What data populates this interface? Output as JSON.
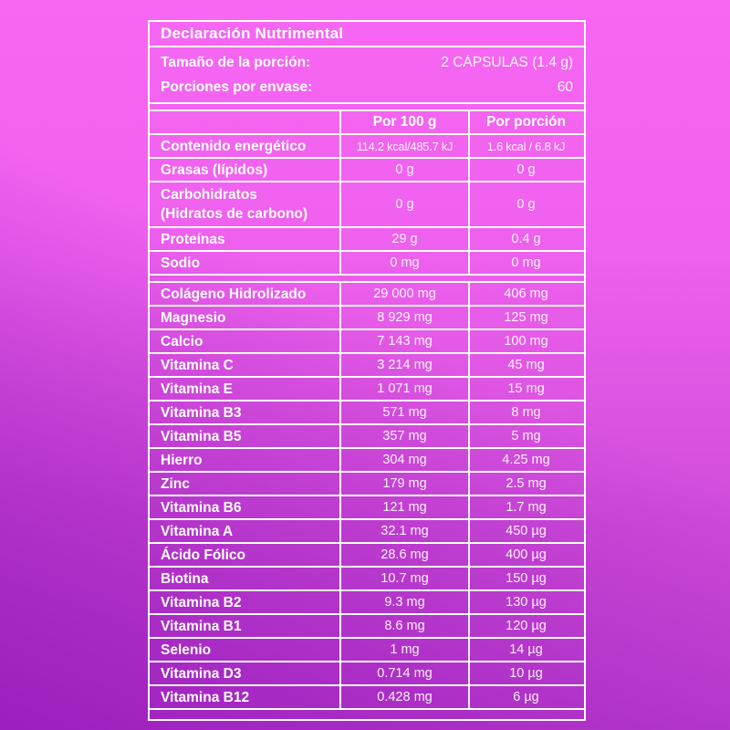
{
  "background": {
    "top_color": "#f767f3",
    "bottom_color": "#c446d3",
    "corner_dark_color": "#9c1fbe",
    "line_color": "#ffffff",
    "text_color": "#ffffff"
  },
  "label": {
    "title": "Declaración Nutrimental",
    "serving_size_label": "Tamaño de la porción:",
    "serving_size_value": "2 CÁPSULAS (1.4 g)",
    "servings_per_container_label": "Porciones por envase:",
    "servings_per_container_value": "60",
    "col_per100_header": "Por 100 g",
    "col_portion_header": "Por porción",
    "macro_rows": [
      {
        "name": "Contenido energético",
        "per100": "114.2 kcal/485.7 kJ",
        "portion": "1.6 kcal / 6.8 kJ"
      },
      {
        "name": "Grasas (lípidos)",
        "per100": "0 g",
        "portion": "0 g"
      },
      {
        "name": "Carbohidratos\n(Hidratos de carbono)",
        "per100": "0 g",
        "portion": "0 g"
      },
      {
        "name": "Proteínas",
        "per100": "29 g",
        "portion": "0.4 g"
      },
      {
        "name": "Sodio",
        "per100": "0 mg",
        "portion": "0 mg"
      }
    ],
    "micro_rows": [
      {
        "name": "Colágeno Hidrolizado",
        "per100": "29 000 mg",
        "portion": "406 mg"
      },
      {
        "name": "Magnesio",
        "per100": "8 929 mg",
        "portion": "125 mg"
      },
      {
        "name": "Calcio",
        "per100": "7 143 mg",
        "portion": "100 mg"
      },
      {
        "name": "Vitamina C",
        "per100": "3 214 mg",
        "portion": "45 mg"
      },
      {
        "name": "Vitamina E",
        "per100": "1 071 mg",
        "portion": "15 mg"
      },
      {
        "name": "Vitamina B3",
        "per100": "571 mg",
        "portion": "8 mg"
      },
      {
        "name": "Vitamina B5",
        "per100": "357 mg",
        "portion": "5 mg"
      },
      {
        "name": "Hierro",
        "per100": "304 mg",
        "portion": "4.25 mg"
      },
      {
        "name": "Zinc",
        "per100": "179 mg",
        "portion": "2.5 mg"
      },
      {
        "name": "Vitamina B6",
        "per100": "121 mg",
        "portion": "1.7 mg"
      },
      {
        "name": "Vitamina A",
        "per100": "32.1 mg",
        "portion": "450 µg"
      },
      {
        "name": "Ácido Fólico",
        "per100": "28.6 mg",
        "portion": "400 µg"
      },
      {
        "name": "Biotina",
        "per100": "10.7 mg",
        "portion": "150 µg"
      },
      {
        "name": "Vitamina B2",
        "per100": "9.3 mg",
        "portion": "130 µg"
      },
      {
        "name": "Vitamina B1",
        "per100": "8.6 mg",
        "portion": "120 µg"
      },
      {
        "name": "Selenio",
        "per100": "1 mg",
        "portion": "14 µg"
      },
      {
        "name": "Vitamina D3",
        "per100": "0.714 mg",
        "portion": "10 µg"
      },
      {
        "name": "Vitamina B12",
        "per100": "0.428 mg",
        "portion": "6 µg"
      }
    ]
  }
}
